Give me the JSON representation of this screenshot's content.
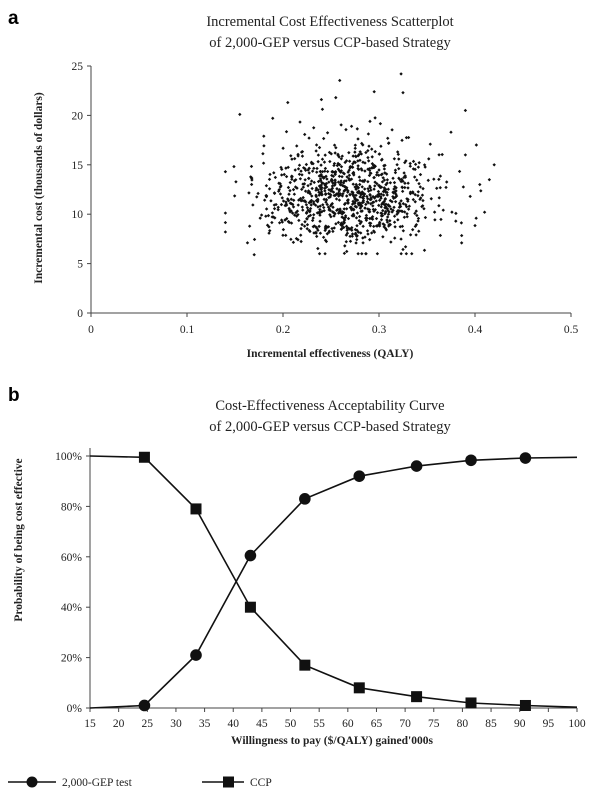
{
  "chart_data": [
    {
      "panel": "a",
      "type": "scatter",
      "title": [
        "Incremental Cost Effectiveness Scatterplot",
        "of 2,000-GEP versus CCP-based Strategy"
      ],
      "xlabel": "Incremental  effectiveness (QALY)",
      "ylabel": "Incremental cost (thousands of dollars)",
      "xlim": [
        0,
        0.5
      ],
      "ylim": [
        0,
        25
      ],
      "xticks": [
        "0",
        "0.1",
        "0.2",
        "0.3",
        "0.4",
        "0.5"
      ],
      "yticks": [
        "0",
        "5",
        "10",
        "15",
        "20",
        "25"
      ],
      "marker_color": "#111111",
      "cloud": {
        "points": 1000,
        "x_mean": 0.27,
        "x_sd": 0.045,
        "y_mean": 11.0,
        "y_sd": 2.8,
        "x_range": [
          0.14,
          0.42
        ],
        "y_range": [
          6,
          24.2
        ]
      },
      "outliers": [
        [
          0.14,
          8.2
        ],
        [
          0.14,
          14.3
        ],
        [
          0.155,
          20.1
        ],
        [
          0.17,
          5.9
        ],
        [
          0.18,
          17.9
        ],
        [
          0.205,
          21.3
        ],
        [
          0.24,
          21.6
        ],
        [
          0.255,
          21.8
        ],
        [
          0.295,
          22.4
        ],
        [
          0.323,
          24.2
        ],
        [
          0.325,
          22.3
        ],
        [
          0.39,
          20.5
        ],
        [
          0.39,
          16.0
        ],
        [
          0.375,
          18.3
        ],
        [
          0.42,
          15.0
        ],
        [
          0.405,
          13.0
        ],
        [
          0.395,
          11.8
        ],
        [
          0.41,
          10.2
        ],
        [
          0.38,
          9.3
        ],
        [
          0.163,
          7.1
        ]
      ]
    },
    {
      "panel": "b",
      "type": "line",
      "title": [
        "Cost-Effectiveness Acceptability Curve",
        "of 2,000-GEP versus CCP-based Strategy"
      ],
      "xlabel": "Willingness to pay ($/QALY) gained'000s",
      "ylabel": "Probability of being cost effective",
      "xlim": [
        15,
        100
      ],
      "ylim": [
        0,
        100
      ],
      "xticks": [
        "15",
        "20",
        "25",
        "30",
        "35",
        "40",
        "45",
        "50",
        "55",
        "60",
        "65",
        "70",
        "75",
        "80",
        "85",
        "90",
        "95",
        "100"
      ],
      "yticks": [
        "0%",
        "20%",
        "40%",
        "60%",
        "80%",
        "100%"
      ],
      "series": [
        {
          "name": "2,000-GEP test",
          "marker": "circle",
          "x": [
            15,
            24.5,
            33.5,
            43,
            52.5,
            62,
            72,
            81.5,
            91,
            100
          ],
          "y": [
            0,
            1,
            21,
            60.5,
            83,
            92,
            96,
            98.3,
            99.2,
            99.5
          ],
          "marker_x": [
            24.5,
            33.5,
            43,
            52.5,
            62,
            72,
            81.5,
            91
          ]
        },
        {
          "name": "CCP",
          "marker": "square",
          "x": [
            15,
            24.5,
            33.5,
            43,
            52.5,
            62,
            72,
            81.5,
            91,
            100
          ],
          "y": [
            100,
            99.5,
            79,
            40,
            17,
            8,
            4.5,
            2,
            1,
            0.3
          ],
          "marker_x": [
            24.5,
            33.5,
            43,
            52.5,
            62,
            72,
            81.5,
            91
          ]
        }
      ]
    }
  ],
  "legend": {
    "placement": "bottom-left",
    "items": [
      "2,000-GEP test",
      "CCP"
    ]
  }
}
